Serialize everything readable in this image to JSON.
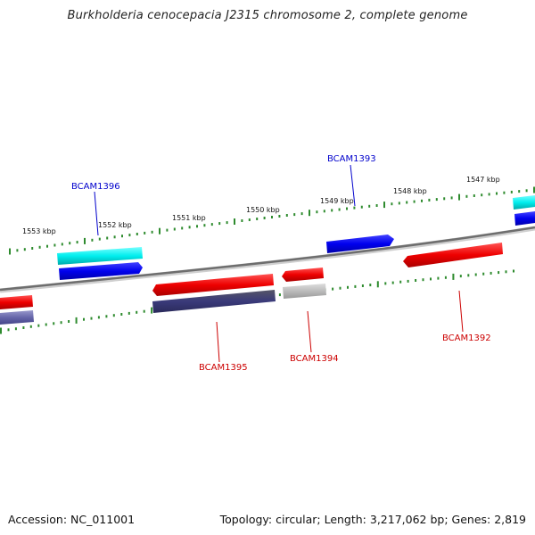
{
  "header": {
    "title": "Burkholderia cenocepacia J2315 chromosome 2, complete genome"
  },
  "footer": {
    "accession": "Accession: NC_011001",
    "summary": "Topology: circular; Length: 3,217,062 bp; Genes: 2,819"
  },
  "colors": {
    "backbone": "#7a7a7a",
    "ticks": "#2e8b2e",
    "label_forward": "#0000cc",
    "label_reverse": "#cc0000"
  },
  "map": {
    "scale_ticks": [
      {
        "label": "1553 kbp"
      },
      {
        "label": "1552 kbp"
      },
      {
        "label": "1551 kbp"
      },
      {
        "label": "1550 kbp"
      },
      {
        "label": "1549 kbp"
      },
      {
        "label": "1548 kbp"
      },
      {
        "label": "1547 kbp"
      }
    ],
    "labels": [
      {
        "text": "BCAM1396",
        "strand": "forward"
      },
      {
        "text": "BCAM1393",
        "strand": "forward"
      },
      {
        "text": "BCAM1395",
        "strand": "reverse"
      },
      {
        "text": "BCAM1394",
        "strand": "reverse"
      },
      {
        "text": "BCAM1392",
        "strand": "reverse"
      }
    ]
  }
}
